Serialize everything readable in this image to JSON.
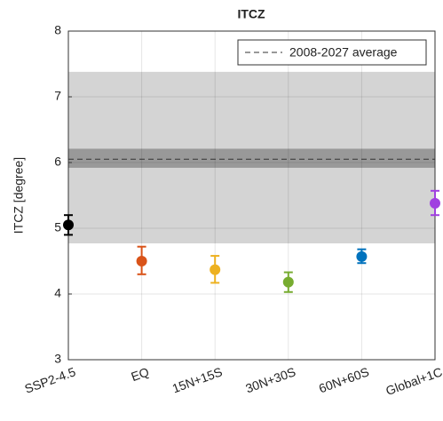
{
  "chart_data": {
    "type": "errorbar",
    "title": "ITCZ",
    "ylabel": "ITCZ [degree]",
    "categories": [
      "SSP2-4.5",
      "EQ",
      "15N+15S",
      "30N+30S",
      "60N+60S",
      "Global+1C"
    ],
    "values": [
      5.05,
      4.5,
      4.37,
      4.18,
      4.57,
      5.38
    ],
    "lower": [
      4.9,
      4.3,
      4.17,
      4.03,
      4.47,
      5.2
    ],
    "upper": [
      5.2,
      4.72,
      4.58,
      4.33,
      4.68,
      5.57
    ],
    "colors": [
      "#000000",
      "#d95319",
      "#edb120",
      "#77ac30",
      "#0072bd",
      "#a040e0"
    ],
    "outer_band": [
      4.77,
      7.38
    ],
    "inner_band": [
      5.92,
      6.21
    ],
    "average": 6.05,
    "average_label": "2008-2027 average",
    "ylim": [
      3,
      8
    ],
    "yticks": [
      3,
      4,
      5,
      6,
      7,
      8
    ],
    "grid": true,
    "legend": "upper right"
  }
}
